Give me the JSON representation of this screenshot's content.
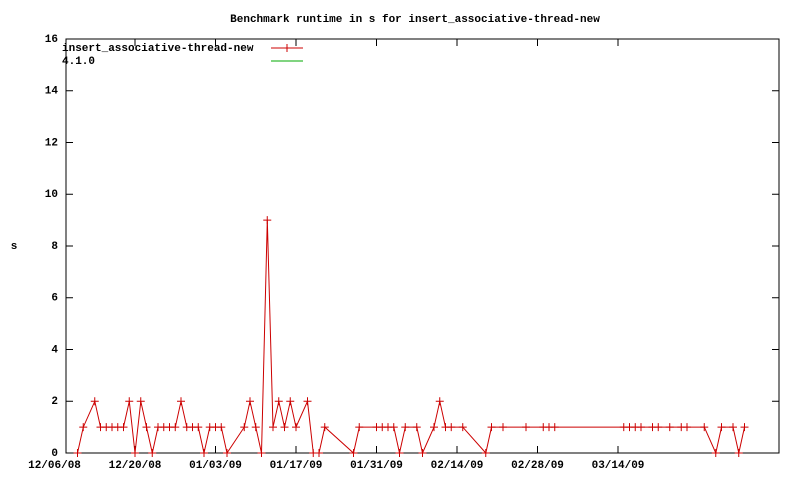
{
  "chart_data": {
    "type": "line",
    "title": "Benchmark runtime in s for insert_associative-thread-new",
    "y_label": "s",
    "xlim": [
      "2008-12-08",
      "2009-04-11"
    ],
    "xticks": [
      {
        "value": "2008-12-06",
        "label": "12/06/08"
      },
      {
        "value": "2008-12-20",
        "label": "12/20/08"
      },
      {
        "value": "2009-01-03",
        "label": "01/03/09"
      },
      {
        "value": "2009-01-17",
        "label": "01/17/09"
      },
      {
        "value": "2009-01-31",
        "label": "01/31/09"
      },
      {
        "value": "2009-02-14",
        "label": "02/14/09"
      },
      {
        "value": "2009-02-28",
        "label": "02/28/09"
      },
      {
        "value": "2009-03-14",
        "label": "03/14/09"
      }
    ],
    "ylim": [
      0,
      16
    ],
    "yticks": [
      0,
      2,
      4,
      6,
      8,
      10,
      12,
      14,
      16
    ],
    "legend": "top-left",
    "series": [
      {
        "name": "insert_associative-thread-new",
        "color": "#cc0000",
        "marker": "+",
        "x": [
          "2008-12-10",
          "2008-12-11",
          "2008-12-13",
          "2008-12-14",
          "2008-12-15",
          "2008-12-16",
          "2008-12-17",
          "2008-12-18",
          "2008-12-19",
          "2008-12-20",
          "2008-12-21",
          "2008-12-22",
          "2008-12-23",
          "2008-12-24",
          "2008-12-25",
          "2008-12-26",
          "2008-12-27",
          "2008-12-28",
          "2008-12-29",
          "2008-12-30",
          "2008-12-31",
          "2009-01-01",
          "2009-01-02",
          "2009-01-03",
          "2009-01-04",
          "2009-01-05",
          "2009-01-08",
          "2009-01-09",
          "2009-01-10",
          "2009-01-11",
          "2009-01-12",
          "2009-01-13",
          "2009-01-14",
          "2009-01-15",
          "2009-01-16",
          "2009-01-17",
          "2009-01-19",
          "2009-01-20",
          "2009-01-21",
          "2009-01-22",
          "2009-01-27",
          "2009-01-28",
          "2009-01-31",
          "2009-02-01",
          "2009-02-02",
          "2009-02-03",
          "2009-02-04",
          "2009-02-05",
          "2009-02-07",
          "2009-02-08",
          "2009-02-10",
          "2009-02-11",
          "2009-02-12",
          "2009-02-13",
          "2009-02-15",
          "2009-02-19",
          "2009-02-20",
          "2009-02-22",
          "2009-02-26",
          "2009-03-01",
          "2009-03-02",
          "2009-03-03",
          "2009-03-15",
          "2009-03-16",
          "2009-03-17",
          "2009-03-18",
          "2009-03-20",
          "2009-03-21",
          "2009-03-23",
          "2009-03-25",
          "2009-03-26",
          "2009-03-29",
          "2009-03-31",
          "2009-04-01",
          "2009-04-03",
          "2009-04-04",
          "2009-04-05"
        ],
        "values": [
          0,
          1,
          2,
          1,
          1,
          1,
          1,
          1,
          2,
          0,
          2,
          1,
          0,
          1,
          1,
          1,
          1,
          2,
          1,
          1,
          1,
          0,
          1,
          1,
          1,
          0,
          1,
          2,
          1,
          0,
          9,
          1,
          2,
          1,
          2,
          1,
          2,
          0,
          0,
          1,
          0,
          1,
          1,
          1,
          1,
          1,
          0,
          1,
          1,
          0,
          1,
          2,
          1,
          1,
          1,
          0,
          1,
          1,
          1,
          1,
          1,
          1,
          1,
          1,
          1,
          1,
          1,
          1,
          1,
          1,
          1,
          1,
          0,
          1,
          1,
          0,
          1
        ]
      },
      {
        "name": "4.1.0",
        "color": "#00aa00",
        "x": [],
        "values": []
      }
    ]
  }
}
